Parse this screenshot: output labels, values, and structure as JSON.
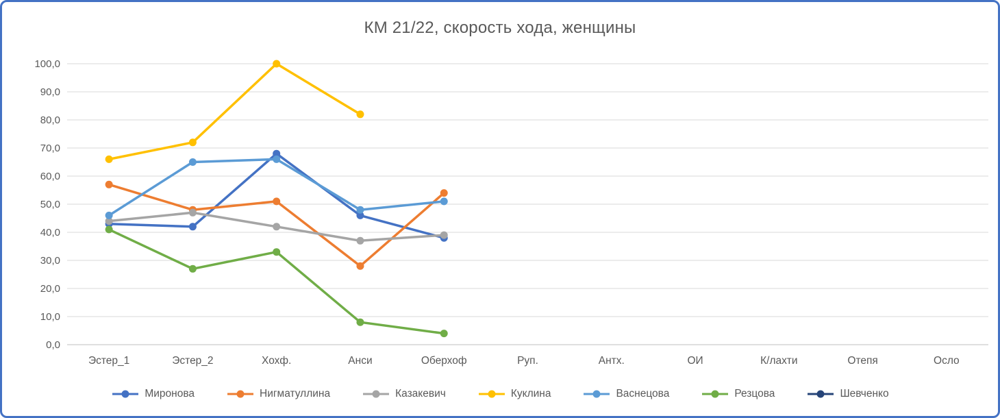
{
  "frame": {
    "border_color": "#4472C4",
    "background": "#ffffff",
    "text_color": "#595959",
    "gridline_color": "#D9D9D9",
    "axis_line_color": "#BFBFBF"
  },
  "chart_data": {
    "type": "line",
    "title": "КМ 21/22, скорость хода, женщины",
    "xlabel": "",
    "ylabel": "",
    "ylim": [
      0,
      100
    ],
    "y_step": 10,
    "grid": true,
    "legend_position": "bottom",
    "y_ticks": [
      {
        "value": 0,
        "label": "0,0"
      },
      {
        "value": 10,
        "label": "10,0"
      },
      {
        "value": 20,
        "label": "20,0"
      },
      {
        "value": 30,
        "label": "30,0"
      },
      {
        "value": 40,
        "label": "40,0"
      },
      {
        "value": 50,
        "label": "50,0"
      },
      {
        "value": 60,
        "label": "60,0"
      },
      {
        "value": 70,
        "label": "70,0"
      },
      {
        "value": 80,
        "label": "80,0"
      },
      {
        "value": 90,
        "label": "90,0"
      },
      {
        "value": 100,
        "label": "100,0"
      }
    ],
    "categories": [
      "Эстер_1",
      "Эстер_2",
      "Хохф.",
      "Анси",
      "Оберхоф",
      "Руп.",
      "Антх.",
      "ОИ",
      "К/лахти",
      "Отепя",
      "Осло"
    ],
    "series": [
      {
        "name": "Миронова",
        "color": "#4472C4",
        "values": [
          43,
          42,
          68,
          46,
          38,
          null,
          null,
          null,
          null,
          null,
          null
        ]
      },
      {
        "name": "Нигматуллина",
        "color": "#ED7D31",
        "values": [
          57,
          48,
          51,
          28,
          54,
          null,
          null,
          null,
          null,
          null,
          null
        ]
      },
      {
        "name": "Казакевич",
        "color": "#A5A5A5",
        "values": [
          44,
          47,
          42,
          37,
          39,
          null,
          null,
          null,
          null,
          null,
          null
        ]
      },
      {
        "name": "Куклина",
        "color": "#FFC000",
        "values": [
          66,
          72,
          100,
          82,
          null,
          null,
          null,
          null,
          null,
          null,
          null
        ]
      },
      {
        "name": "Васнецова",
        "color": "#5B9BD5",
        "values": [
          46,
          65,
          66,
          48,
          51,
          null,
          null,
          null,
          null,
          null,
          null
        ]
      },
      {
        "name": "Резцова",
        "color": "#70AD47",
        "values": [
          41,
          27,
          33,
          8,
          4,
          null,
          null,
          null,
          null,
          null,
          null
        ]
      },
      {
        "name": "Шевченко",
        "color": "#264478",
        "values": [
          null,
          null,
          null,
          null,
          null,
          null,
          null,
          null,
          null,
          null,
          null
        ]
      }
    ]
  }
}
